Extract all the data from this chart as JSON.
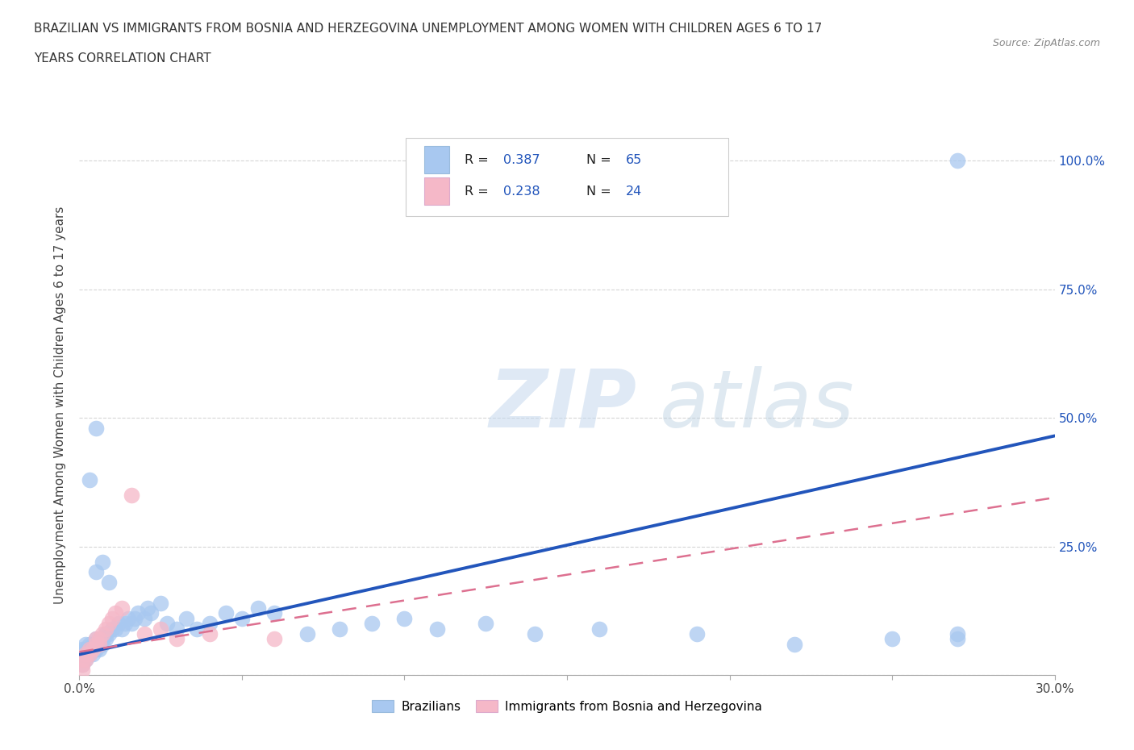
{
  "title_line1": "BRAZILIAN VS IMMIGRANTS FROM BOSNIA AND HERZEGOVINA UNEMPLOYMENT AMONG WOMEN WITH CHILDREN AGES 6 TO 17",
  "title_line2": "YEARS CORRELATION CHART",
  "source_text": "Source: ZipAtlas.com",
  "ylabel": "Unemployment Among Women with Children Ages 6 to 17 years",
  "xlim": [
    0.0,
    0.3
  ],
  "ylim": [
    0.0,
    1.05
  ],
  "blue_color": "#a8c8f0",
  "pink_color": "#f5b8c8",
  "line_blue": "#2255bb",
  "line_pink": "#dd7090",
  "watermark_zip": "ZIP",
  "watermark_atlas": "atlas",
  "legend_label1": "Brazilians",
  "legend_label2": "Immigrants from Bosnia and Herzegovina",
  "blue_line_x": [
    0.0,
    0.3
  ],
  "blue_line_y": [
    0.04,
    0.465
  ],
  "pink_line_x": [
    0.0,
    0.3
  ],
  "pink_line_y": [
    0.045,
    0.345
  ],
  "blue_x": [
    0.001,
    0.001,
    0.001,
    0.001,
    0.002,
    0.002,
    0.002,
    0.002,
    0.003,
    0.003,
    0.003,
    0.004,
    0.004,
    0.004,
    0.005,
    0.005,
    0.005,
    0.006,
    0.006,
    0.007,
    0.007,
    0.008,
    0.008,
    0.009,
    0.01,
    0.011,
    0.012,
    0.013,
    0.014,
    0.015,
    0.016,
    0.017,
    0.018,
    0.02,
    0.021,
    0.022,
    0.025,
    0.027,
    0.03,
    0.033,
    0.036,
    0.04,
    0.045,
    0.05,
    0.055,
    0.06,
    0.07,
    0.08,
    0.09,
    0.1,
    0.11,
    0.125,
    0.14,
    0.16,
    0.005,
    0.003,
    0.19,
    0.22,
    0.25,
    0.27,
    0.005,
    0.007,
    0.009,
    0.27,
    0.27
  ],
  "blue_y": [
    0.02,
    0.03,
    0.04,
    0.05,
    0.03,
    0.04,
    0.05,
    0.06,
    0.04,
    0.05,
    0.06,
    0.04,
    0.05,
    0.06,
    0.05,
    0.06,
    0.07,
    0.05,
    0.06,
    0.06,
    0.07,
    0.07,
    0.08,
    0.08,
    0.09,
    0.09,
    0.1,
    0.09,
    0.1,
    0.11,
    0.1,
    0.11,
    0.12,
    0.11,
    0.13,
    0.12,
    0.14,
    0.1,
    0.09,
    0.11,
    0.09,
    0.1,
    0.12,
    0.11,
    0.13,
    0.12,
    0.08,
    0.09,
    0.1,
    0.11,
    0.09,
    0.1,
    0.08,
    0.09,
    0.48,
    0.38,
    0.08,
    0.06,
    0.07,
    0.08,
    0.2,
    0.22,
    0.18,
    1.0,
    0.07
  ],
  "pink_x": [
    0.001,
    0.001,
    0.002,
    0.002,
    0.003,
    0.003,
    0.004,
    0.005,
    0.005,
    0.006,
    0.006,
    0.007,
    0.008,
    0.009,
    0.01,
    0.011,
    0.013,
    0.016,
    0.02,
    0.025,
    0.03,
    0.04,
    0.06,
    0.001
  ],
  "pink_y": [
    0.02,
    0.03,
    0.03,
    0.04,
    0.04,
    0.05,
    0.05,
    0.06,
    0.07,
    0.06,
    0.07,
    0.08,
    0.09,
    0.1,
    0.11,
    0.12,
    0.13,
    0.35,
    0.08,
    0.09,
    0.07,
    0.08,
    0.07,
    0.01
  ]
}
